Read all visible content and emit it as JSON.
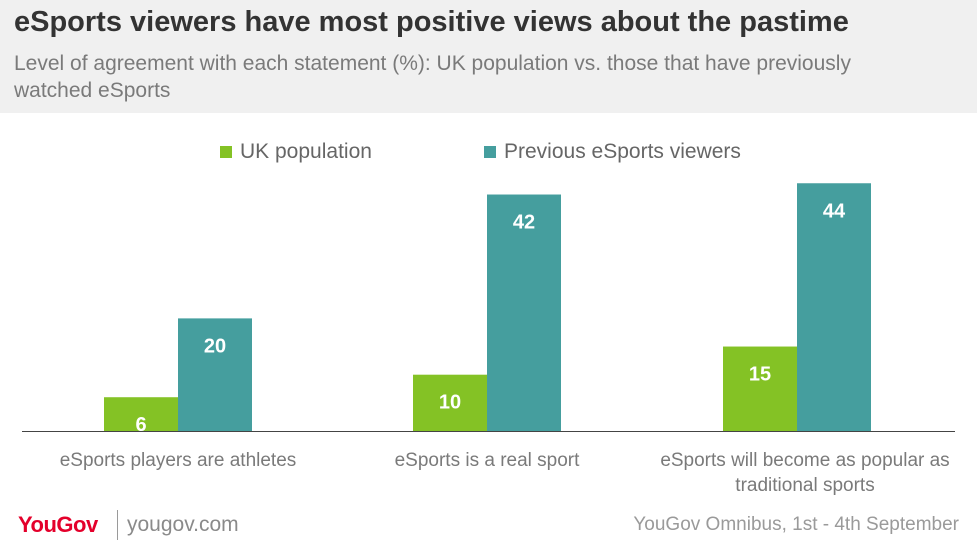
{
  "header": {
    "title": "eSports viewers have most positive views about the pastime",
    "subtitle": "Level of agreement with each statement (%): UK population vs. those that have previously watched eSports"
  },
  "colors": {
    "uk_population": "#84c225",
    "esports_viewers": "#459e9e",
    "header_bg": "#f0f0f0",
    "brand_red": "#e4002b"
  },
  "chart_data": {
    "type": "bar",
    "categories": [
      "eSports players are athletes",
      "eSports is a real sport",
      "eSports will become as popular as traditional sports"
    ],
    "series": [
      {
        "name": "UK population",
        "values": [
          6,
          10,
          15
        ]
      },
      {
        "name": "Previous eSports viewers",
        "values": [
          20,
          42,
          44
        ]
      }
    ],
    "ylim": [
      0,
      46
    ],
    "grid": false,
    "legend": "top-center",
    "data_labels": true
  },
  "footer": {
    "logo": "YouGov",
    "url": "yougov.com",
    "source": "YouGov Omnibus, 1st - 4th September"
  }
}
